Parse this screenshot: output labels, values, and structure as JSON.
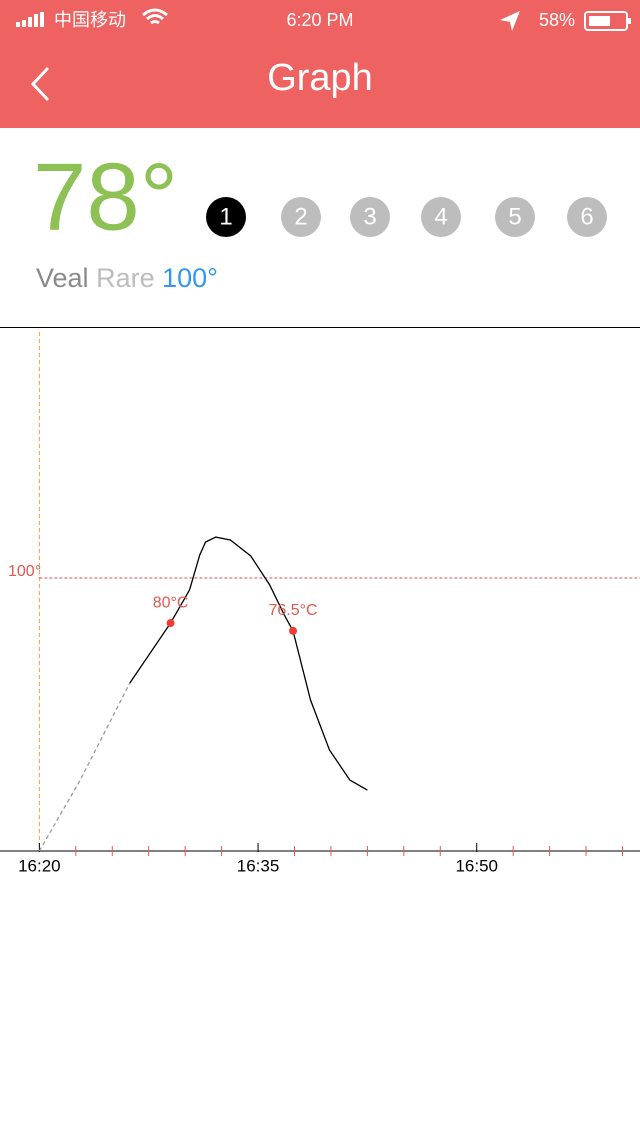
{
  "status_bar": {
    "carrier": "中国移动",
    "time": "6:20 PM",
    "battery": "58%"
  },
  "header": {
    "title": "Graph"
  },
  "current_temp": "78°",
  "probes": {
    "labels": [
      "1",
      "2",
      "3",
      "4",
      "5",
      "6"
    ],
    "selected": 0
  },
  "meat": {
    "kind": "Veal",
    "doneness": "Rare",
    "target": "100°"
  },
  "chart_data": {
    "type": "line",
    "series": [
      {
        "color": "#999999",
        "dashed": true,
        "x": [
          980,
          982.8,
          986.2
        ],
        "values": [
          -21.3,
          10.2,
          53.3
        ]
      },
      {
        "color": "#000000",
        "dashed": false,
        "x": [
          986.2,
          989.0,
          990.3,
          991.0,
          991.4,
          992.1,
          993.1,
          994.5,
          995.8,
          996.8,
          997.4,
          998.6,
          999.9,
          1001.3,
          1002.5
        ],
        "values": [
          53.3,
          80,
          94.7,
          110.2,
          116,
          118.2,
          116.9,
          109.8,
          96.9,
          83.6,
          76.5,
          45.8,
          23.6,
          10.2,
          5.8
        ]
      }
    ],
    "annotations": [
      {
        "x": 989.0,
        "value": 80,
        "label": "80°C"
      },
      {
        "x": 997.4,
        "value": 76.5,
        "label": "76.5°C"
      }
    ],
    "reference": {
      "value": 100,
      "label": "100°"
    },
    "xlim": [
      977.3,
      1021.2
    ],
    "ylim": [
      -21.3,
      211.1
    ],
    "xticks": [
      {
        "value": 980,
        "label": "16:20"
      },
      {
        "value": 995,
        "label": "16:35"
      },
      {
        "value": 1010,
        "label": "16:50"
      }
    ],
    "xminorticks": [
      982.5,
      985,
      987.5,
      990,
      992.5,
      997.5,
      1000,
      1002.5,
      1005,
      1007.5,
      1012.5,
      1015,
      1017.5,
      1020
    ]
  }
}
